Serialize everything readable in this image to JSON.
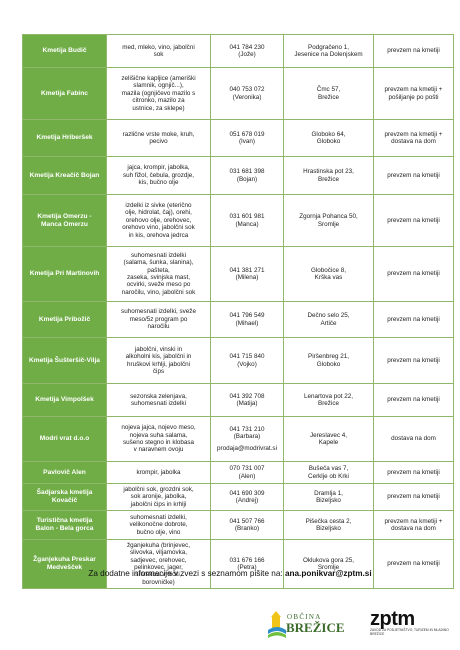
{
  "table": {
    "rows": [
      {
        "name": "Kmetija Budič",
        "products": "med, mleko, vino, jabolčni\nsok",
        "contact": "041 784 230\n(Jože)",
        "email": "",
        "address": "Podgračeno 1,\nJesenice na Dolenjskem",
        "delivery": "prevzem na kmetiji",
        "h": 33
      },
      {
        "name": "Kmetija Fabinc",
        "products": "zelišične kapljice (ameriški\nslamnik, ognjič...),\nmazila (ognjičevo mazilo s\ncitronko, mazilo za\nustnice, za sklepe)",
        "contact": "040 753 072\n(Veronika)",
        "email": "",
        "address": "Čmc 57,\nBrežice",
        "delivery": "prevzem na kmetiji +\npošiljanje po pošti",
        "h": 52
      },
      {
        "name": "Kmetija Hriberšek",
        "products": "različne vrste moke, kruh,\npecivo",
        "contact": "051 678 019\n(Ivan)",
        "email": "",
        "address": "Globoko 64,\nGloboko",
        "delivery": "prevzem na kmetiji +\ndostava na dom",
        "h": 37
      },
      {
        "name": "Kmetija Kreačič Bojan",
        "products": "jajca, krompir, jabolka,\nsuh fižol, čebula, grozdje,\nkis, bučno olje",
        "contact": "031 681 398\n(Bojan)",
        "email": "",
        "address": "Hrastinska pot 23,\nBrežice",
        "delivery": "prevzem na kmetiji",
        "h": 38
      },
      {
        "name": "Kmetija Omerzu -\nManca Omerzu",
        "products": "izdelki iz sivke (eterično\nolje, hidrolat, čaj), orehi,\norehovo olje, orehovec,\norehovo vino, jabolčni sok\nin kis, orehova jedrca",
        "contact": "031 601 981\n(Manca)",
        "email": "",
        "address": "Zgornja Pohanca 50,\nSromlje",
        "delivery": "prevzem na kmetiji",
        "h": 52
      },
      {
        "name": "Kmetija Pri Martinovih",
        "products": "suhomesnati izdelki\n(salama, šunka, slanina),\npašteta,\nzaseka, svinjska mast,\nocvirki, sveže meso po\nnaročilu, vino, jabolčni sok",
        "contact": "041 381 271\n(Milena)",
        "email": "",
        "address": "Globočice 8,\nKrška vas",
        "delivery": "prevzem na kmetiji",
        "h": 55
      },
      {
        "name": "Kmetija Pribožič",
        "products": "suhomesnati izdelki, sveže\nmeso/5z program po\nnaročilu",
        "contact": "041 796 549\n(Mihael)",
        "email": "",
        "address": "Dečno selo 25,\nArtiče",
        "delivery": "prevzem na kmetiji",
        "h": 36
      },
      {
        "name": "Kmetija Šušteršič-Vilja",
        "products": "jabolčni, vinski in\nalkoholni kis, jabolčni in\nhruškovi krhlji, jabolčni\nčips",
        "contact": "041 715 840\n(Vojko)",
        "email": "",
        "address": "Piršenbreg 21,\nGloboko",
        "delivery": "prevzem na kmetiji",
        "h": 46
      },
      {
        "name": "Kmetija Vimpolšek",
        "products": "sezonska zelenjava,\nsuhomesnati izdelki",
        "contact": "041 392 708\n(Matija)",
        "email": "",
        "address": "Lenartova pot 22,\nBrežice",
        "delivery": "prevzem na kmetiji",
        "h": 33
      },
      {
        "name": "Modri vrat d.o.o",
        "products": "nojeva jajca, nojevo meso,\nnojeva suha salama,\nsušeno stegno in klobasa\nv naravnem ovoju",
        "contact": "041 731 210\n(Barbara)",
        "email": "prodaja@modrivrat.si",
        "address": "Jereslavec 4,\nKapele",
        "delivery": "dostava na dom",
        "h": 45
      },
      {
        "name": "Pavlovič Alen",
        "products": "krompir, jabolka",
        "contact": "070 731 007\n(Alen)",
        "email": "",
        "address": "Bušeča vas 7,\nCerklje ob Krki",
        "delivery": "prevzem na kmetiji",
        "h": 22
      },
      {
        "name": "Šadjarska kmetija\nKovačič",
        "products": "jabolčni sok, grozdni sok,\nsok aronije, jabolka,\njabolčni čips in krhlji",
        "contact": "041 690 309\n(Andrej)",
        "email": "",
        "address": "Dramlja 1,\nBizeljsko",
        "delivery": "prevzem na kmetiji",
        "h": 27
      },
      {
        "name": "Turistična kmetija\nBalon - Bela gorca",
        "products": "suhomesnati izdelki,\nvelikonočne dobrote,\nbučno olje, vino",
        "contact": "041 507 766\n(Branko)",
        "email": "",
        "address": "Pišečka cesta 2,\nBizeljsko",
        "delivery": "prevzem na kmetiji +\ndostava na dom",
        "h": 29
      },
      {
        "name": "Žganjekuha Preskar\nMedvešček",
        "products": "žganjekuha (brinjevec,\nslivovka, viljamovka,\nsadjevec, orehovec,\npelinkovec, jager,\nsmrekovi vršički,\nborovničke)",
        "contact": "031 676 166\n(Petra)",
        "email": "",
        "address": "Oklukova gora 25,\nSromlje",
        "delivery": "prevzem na kmetiji",
        "h": 49
      }
    ]
  },
  "footer": {
    "text": "Za dodatne informacije v zvezi s seznamom pišite na: ",
    "email": "ana.ponikvar@zptm.si"
  },
  "logos": {
    "obcina_top": "OBČINA",
    "obcina_name": "BREŽICE",
    "zptm_mark": "zptm",
    "zptm_sub": "Zavod za podjetništvo, turizem in mladino Brežice",
    "brand_green": "#70ad47"
  }
}
